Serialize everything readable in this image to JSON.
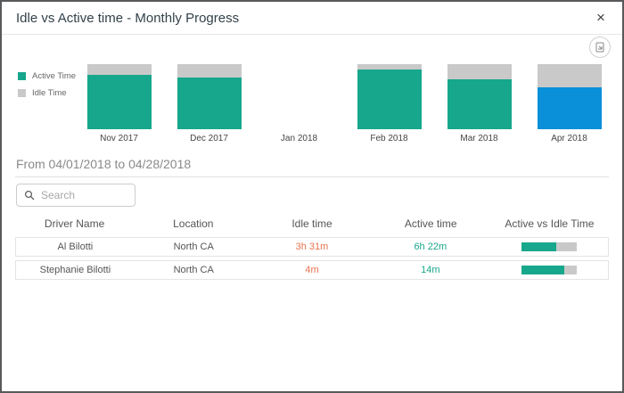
{
  "dialog": {
    "title": "Idle vs Active time - Monthly Progress",
    "close_label": "×"
  },
  "toolbar": {
    "export_icon": "export-chart-icon"
  },
  "colors": {
    "active_teal": "#17a78c",
    "idle_gray": "#c9c9c9",
    "highlight_blue": "#0a8fd9",
    "idle_text_orange": "#e8744d",
    "active_text_teal": "#1aa78c"
  },
  "chart_data": {
    "type": "bar",
    "stacked": true,
    "normalized_percent": true,
    "title": "Idle vs Active time - Monthly Progress",
    "categories": [
      "Nov 2017",
      "Dec 2017",
      "Jan 2018",
      "Feb 2018",
      "Mar 2018",
      "Apr 2018"
    ],
    "series": [
      {
        "name": "Active Time",
        "values": [
          83,
          79,
          null,
          92,
          77,
          64
        ]
      },
      {
        "name": "Idle Time",
        "values": [
          17,
          21,
          null,
          8,
          23,
          36
        ]
      }
    ],
    "ylim": [
      0,
      100
    ],
    "grid": false,
    "legend_position": "left",
    "legend": [
      "Active Time",
      "Idle Time"
    ],
    "highlighted_category": "Apr 2018",
    "highlight_color": "#0a8fd9",
    "active_color": "#17a78c",
    "idle_color": "#c9c9c9"
  },
  "period": {
    "label": "From 04/01/2018 to 04/28/2018"
  },
  "search": {
    "placeholder": "Search",
    "value": ""
  },
  "table": {
    "columns": [
      "Driver Name",
      "Location",
      "Idle time",
      "Active time",
      "Active vs Idle Time"
    ],
    "rows": [
      {
        "driver": "Al Bilotti",
        "location": "North CA",
        "idle": "3h 31m",
        "active": "6h 22m",
        "active_pct": 64
      },
      {
        "driver": "Stephanie Bilotti",
        "location": "North CA",
        "idle": "4m",
        "active": "14m",
        "active_pct": 78
      }
    ]
  }
}
